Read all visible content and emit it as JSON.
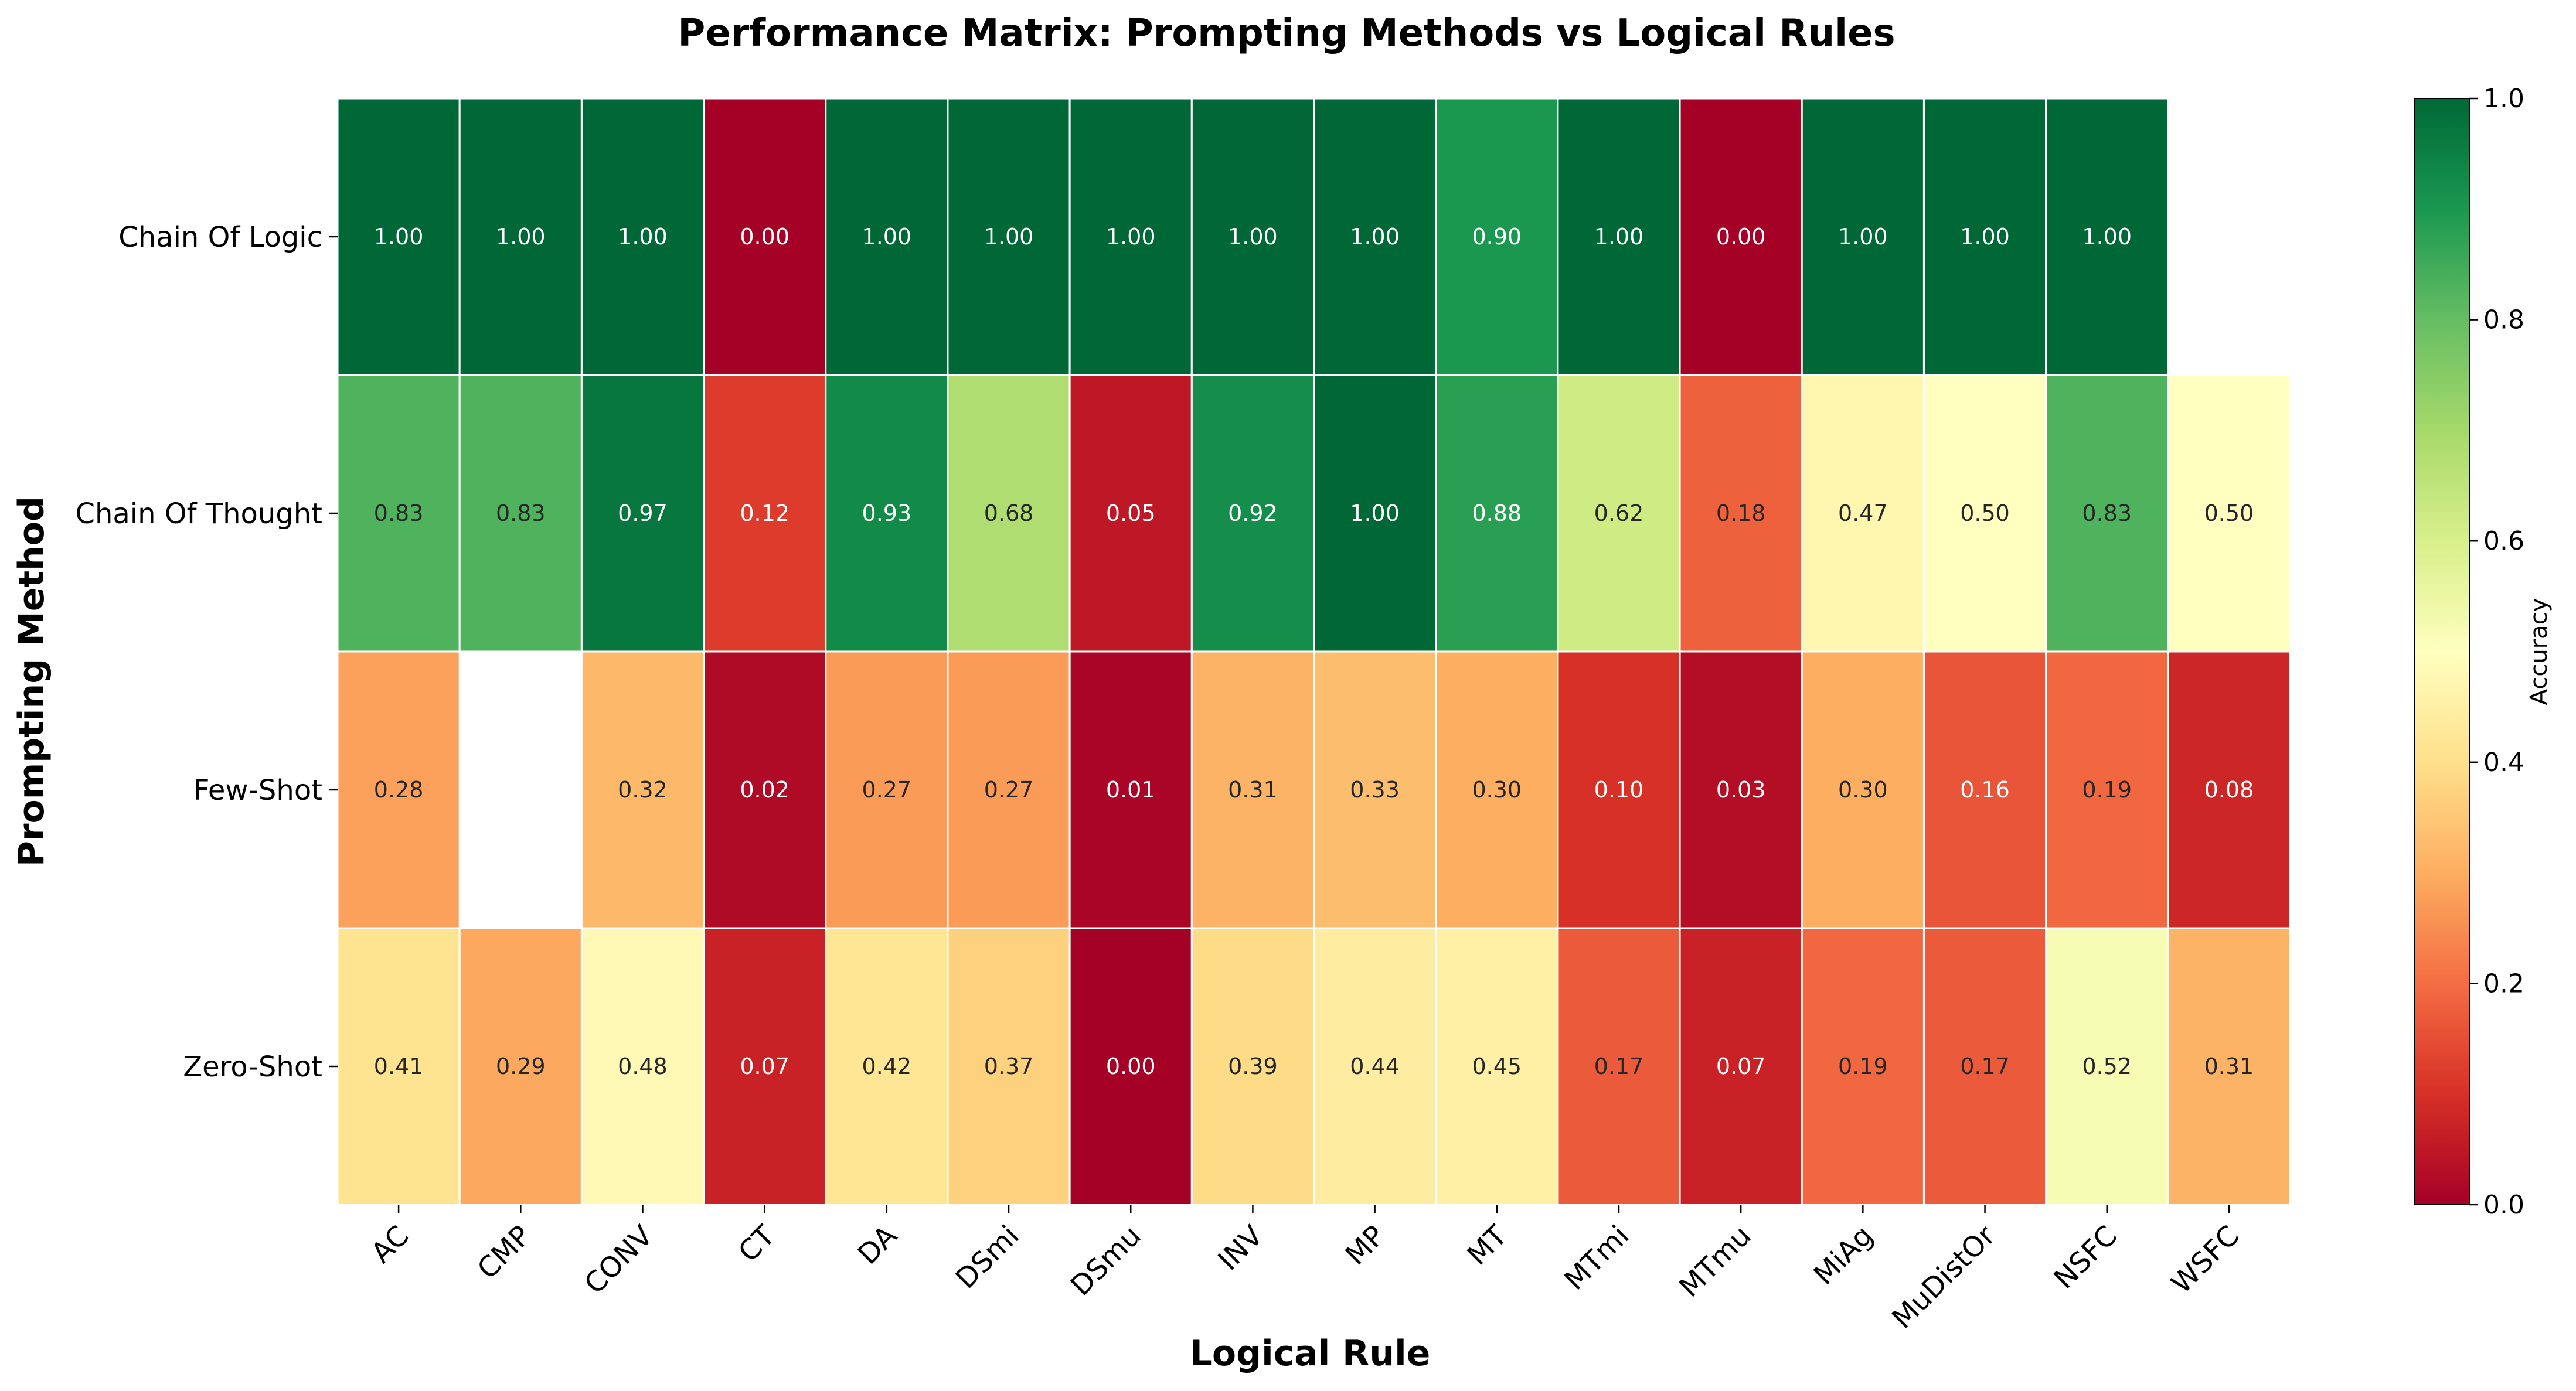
{
  "chart_data": {
    "type": "heatmap",
    "title": "Performance Matrix: Prompting Methods vs Logical Rules",
    "xlabel": "Logical Rule",
    "ylabel": "Prompting Method",
    "x_categories": [
      "AC",
      "CMP",
      "CONV",
      "CT",
      "DA",
      "DSmi",
      "DSmu",
      "INV",
      "MP",
      "MT",
      "MTmi",
      "MTmu",
      "MiAg",
      "MuDistOr",
      "NSFC",
      "WSFC"
    ],
    "y_categories": [
      "Chain Of Logic",
      "Chain Of Thought",
      "Few-Shot",
      "Zero-Shot"
    ],
    "values": [
      [
        1.0,
        1.0,
        1.0,
        0.0,
        1.0,
        1.0,
        1.0,
        1.0,
        1.0,
        0.9,
        1.0,
        0.0,
        1.0,
        1.0,
        1.0,
        null
      ],
      [
        0.83,
        0.83,
        0.97,
        0.12,
        0.93,
        0.68,
        0.05,
        0.92,
        1.0,
        0.88,
        0.62,
        0.18,
        0.47,
        0.5,
        0.83,
        0.5
      ],
      [
        0.28,
        null,
        0.32,
        0.02,
        0.27,
        0.27,
        0.01,
        0.31,
        0.33,
        0.3,
        0.1,
        0.03,
        0.3,
        0.16,
        0.19,
        0.08
      ],
      [
        0.41,
        0.29,
        0.48,
        0.07,
        0.42,
        0.37,
        0.0,
        0.39,
        0.44,
        0.45,
        0.17,
        0.07,
        0.19,
        0.17,
        0.52,
        0.31
      ]
    ],
    "value_format": "2 decimals",
    "colormap": "RdYlGn",
    "colormap_stops": [
      "#a50026",
      "#d73027",
      "#f46d43",
      "#fdae61",
      "#fee08b",
      "#ffffbf",
      "#d9ef8b",
      "#a6d96a",
      "#66bd63",
      "#1a9850",
      "#006837"
    ],
    "vmin": 0.0,
    "vmax": 1.0,
    "colorbar": {
      "label": "Accuracy",
      "ticks": [
        "0.0",
        "0.2",
        "0.4",
        "0.6",
        "0.8",
        "1.0"
      ]
    },
    "grid": false
  }
}
